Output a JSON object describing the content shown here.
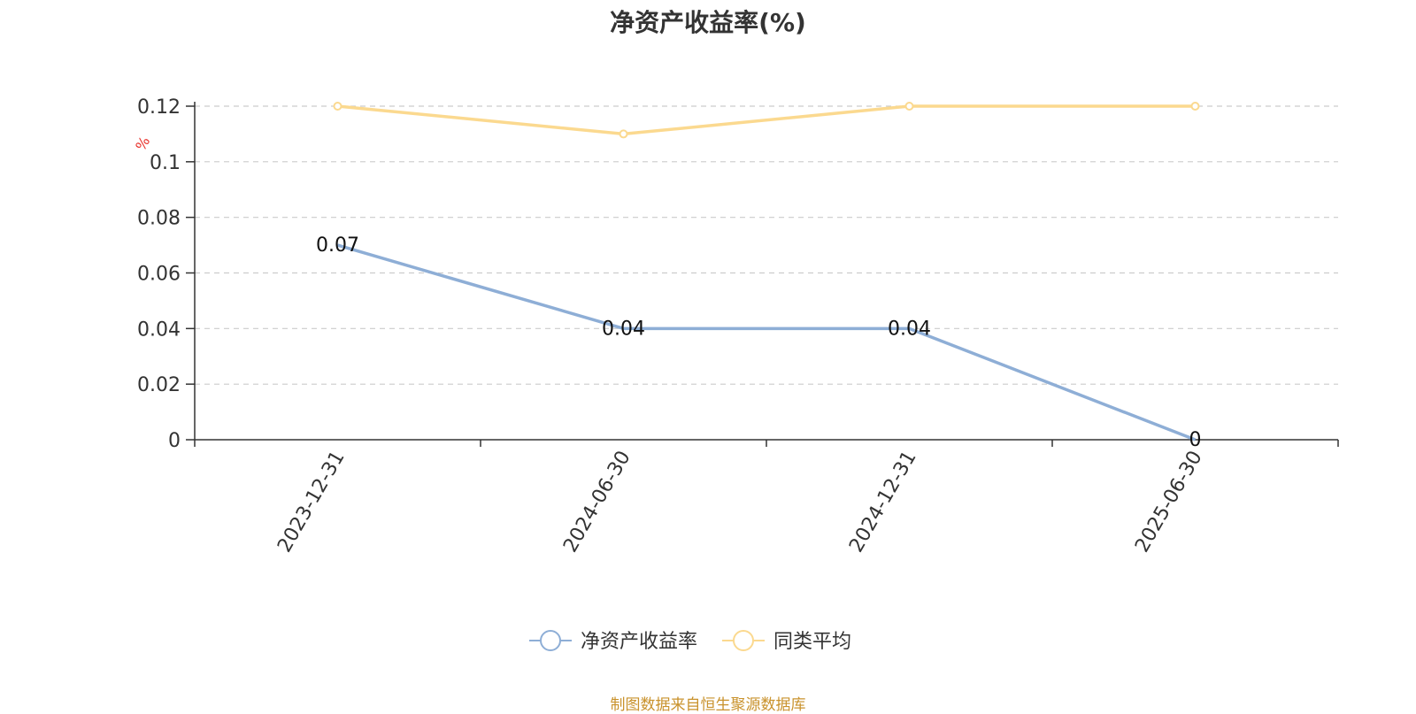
{
  "chart_data": {
    "type": "line",
    "title": "净资产收益率(%)",
    "ylabel": "%",
    "categories": [
      "2023-12-31",
      "2024-06-30",
      "2024-12-31",
      "2025-06-30"
    ],
    "ylim": [
      0,
      0.12
    ],
    "yticks": [
      "0",
      "0.02",
      "0.04",
      "0.06",
      "0.08",
      "0.1",
      "0.12"
    ],
    "grid": true,
    "legend_position": "bottom-center",
    "series": [
      {
        "name": "净资产收益率",
        "values": [
          0.07,
          0.04,
          0.04,
          0
        ],
        "labels": [
          "0.07",
          "0.04",
          "0.04",
          "0"
        ],
        "color": "#8eaed6"
      },
      {
        "name": "同类平均",
        "values": [
          0.12,
          0.11,
          0.12,
          0.12
        ],
        "color": "#fbd98f"
      }
    ]
  },
  "source_note": "制图数据来自恒生聚源数据库"
}
